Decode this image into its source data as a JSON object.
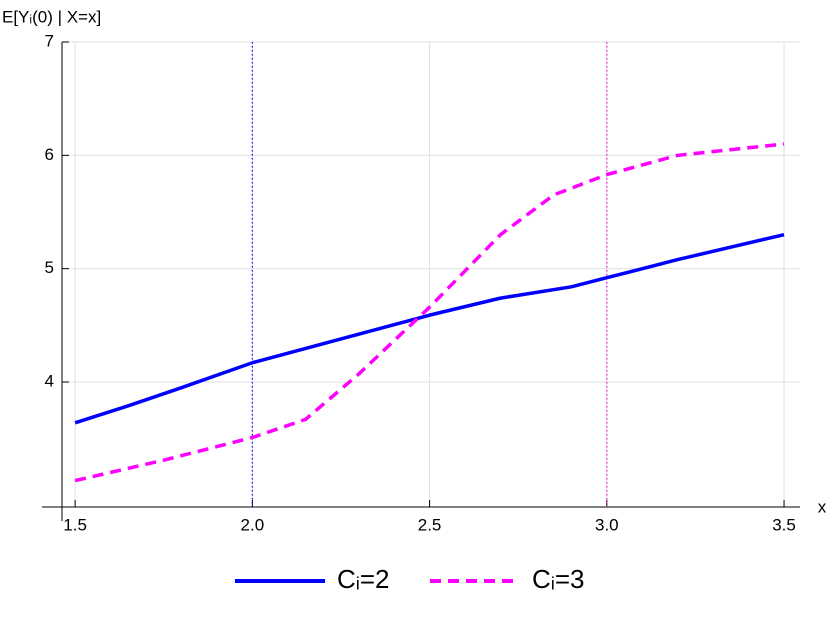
{
  "chart_data": {
    "type": "line",
    "ylabel": "E[Yᵢ(0) | X=x]",
    "xlabel": "x",
    "xlim": [
      1.463,
      3.545
    ],
    "ylim": [
      2.897,
      7
    ],
    "xticks": [
      1.5,
      {
        "value": 2,
        "label": "2.0"
      },
      2.5,
      {
        "value": 3,
        "label": "3.0"
      },
      3.5
    ],
    "yticks": [
      4,
      5,
      6,
      7
    ],
    "grid": true,
    "legend": "bottom",
    "vlines": [
      {
        "x": 2,
        "color": "#0000ff"
      },
      {
        "x": 3,
        "color": "#ff00ff"
      }
    ],
    "series": [
      {
        "name": "Cᵢ=2",
        "color": "#0000ff",
        "dash": "solid",
        "x": [
          1.5,
          1.65,
          1.8,
          2.0,
          2.25,
          2.5,
          2.7,
          2.9,
          3.0,
          3.2,
          3.5
        ],
        "values": [
          3.64,
          3.79,
          3.95,
          4.17,
          4.38,
          4.59,
          4.74,
          4.84,
          4.92,
          5.08,
          5.3
        ]
      },
      {
        "name": "Cᵢ=3",
        "color": "#ff00ff",
        "dash": "dashed",
        "x": [
          1.5,
          1.75,
          2.0,
          2.15,
          2.3,
          2.5,
          2.7,
          2.85,
          3.0,
          3.2,
          3.5
        ],
        "values": [
          3.13,
          3.31,
          3.51,
          3.67,
          4.07,
          4.66,
          5.3,
          5.65,
          5.83,
          6.0,
          6.1
        ]
      }
    ]
  }
}
